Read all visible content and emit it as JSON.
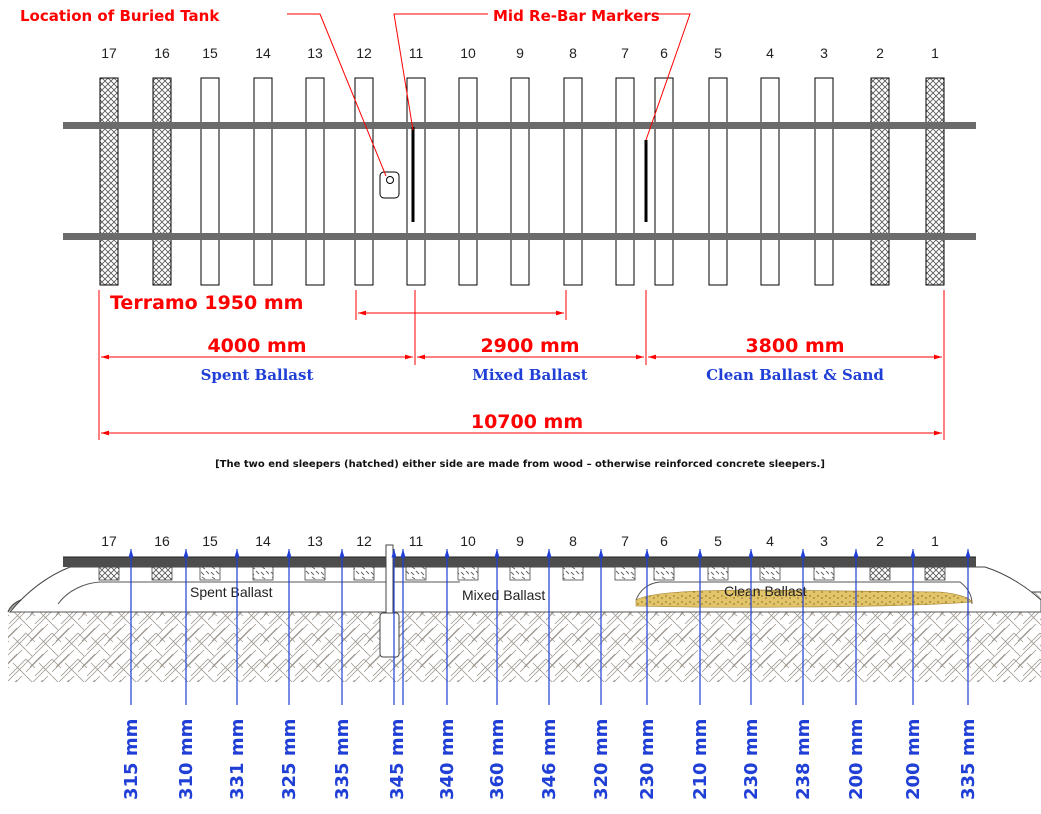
{
  "top_view": {
    "callouts": {
      "buried_tank": "Location of Buried Tank",
      "rebar": "Mid Re-Bar Markers"
    },
    "sleeper_numbers": [
      "17",
      "16",
      "15",
      "14",
      "13",
      "12",
      "11",
      "10",
      "9",
      "8",
      "7",
      "6",
      "5",
      "4",
      "3",
      "2",
      "1"
    ],
    "dimensions": {
      "terramo": "Terramo 1950 mm",
      "spent": "4000 mm",
      "mixed": "2900 mm",
      "clean": "3800 mm",
      "total": "10700 mm"
    },
    "zones": {
      "spent": "Spent Ballast",
      "mixed": "Mixed Ballast",
      "clean": "Clean Ballast & Sand"
    },
    "note": "[The two end sleepers (hatched) either side are made from wood – otherwise reinforced concrete sleepers.]"
  },
  "section_view": {
    "sleeper_numbers": [
      "17",
      "16",
      "15",
      "14",
      "13",
      "12",
      "11",
      "10",
      "9",
      "8",
      "7",
      "6",
      "5",
      "4",
      "3",
      "2",
      "1"
    ],
    "layer_labels": {
      "spent": "Spent Ballast",
      "mixed": "Mixed Ballast",
      "clean": "Clean Ballast"
    },
    "depths": [
      "315 mm",
      "310 mm",
      "331 mm",
      "325 mm",
      "335 mm",
      "345 mm",
      "340 mm",
      "360 mm",
      "346 mm",
      "320 mm",
      "230 mm",
      "210 mm",
      "230 mm",
      "238 mm",
      "200 mm",
      "200 mm",
      "335 mm"
    ]
  },
  "colors": {
    "annotation_red": "#ff0000",
    "depth_blue": "#1f3fd6",
    "rail_gray": "#6b6b6b",
    "sand_yellow": "#e2c46a"
  }
}
